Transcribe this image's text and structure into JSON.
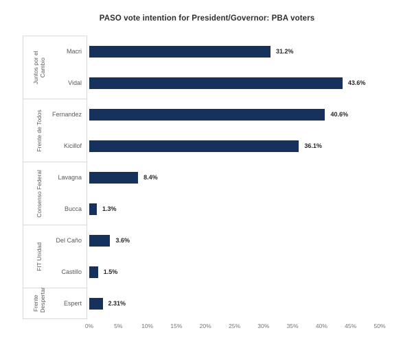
{
  "chart_data": {
    "type": "bar",
    "orientation": "horizontal",
    "title": "PASO vote intention for President/Governor: PBA voters",
    "groups": [
      {
        "party": "Juntos por el Cambio",
        "candidates": [
          {
            "name": "Macri",
            "value": 31.2,
            "label": "31.2%"
          },
          {
            "name": "Vidal",
            "value": 43.6,
            "label": "43.6%"
          }
        ]
      },
      {
        "party": "Frente de Todos",
        "candidates": [
          {
            "name": "Fernandez",
            "value": 40.6,
            "label": "40.6%"
          },
          {
            "name": "Kicillof",
            "value": 36.1,
            "label": "36.1%"
          }
        ]
      },
      {
        "party": "Consenso Federal",
        "candidates": [
          {
            "name": "Lavagna",
            "value": 8.4,
            "label": "8.4%"
          },
          {
            "name": "Bucca",
            "value": 1.3,
            "label": "1.3%"
          }
        ]
      },
      {
        "party": "FIT Unidad",
        "candidates": [
          {
            "name": "Del Caño",
            "value": 3.6,
            "label": "3.6%"
          },
          {
            "name": "Castillo",
            "value": 1.5,
            "label": "1.5%"
          }
        ]
      },
      {
        "party": "Frente Despertar",
        "candidates": [
          {
            "name": "Espert",
            "value": 2.31,
            "label": "2.31%"
          }
        ]
      }
    ],
    "x_axis": {
      "min": 0,
      "max": 50,
      "ticks": [
        "0%",
        "5%",
        "10%",
        "15%",
        "20%",
        "25%",
        "30%",
        "35%",
        "40%",
        "45%",
        "50%"
      ]
    },
    "grid": false,
    "legend": false,
    "colors": {
      "bar": "#16315c",
      "title": "#2f2f2f",
      "value_label": "#262626",
      "category_label": "#595959",
      "tick_label": "#757575",
      "separator": "#d9d9d9"
    }
  }
}
